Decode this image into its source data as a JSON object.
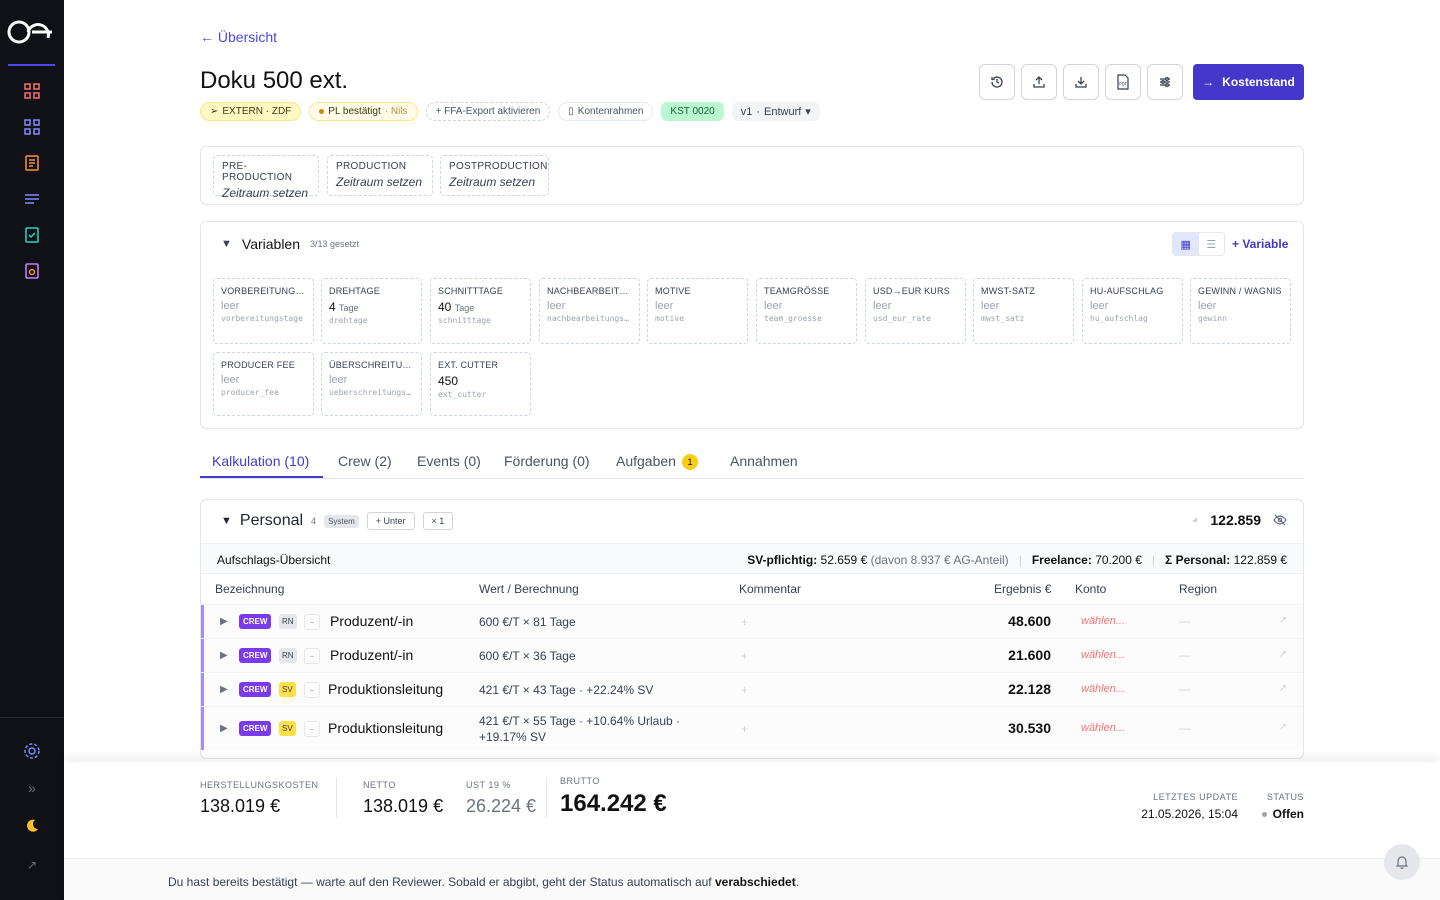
{
  "nav": {
    "back_label": "← Übersicht"
  },
  "project": {
    "title": "Doku 500 ext."
  },
  "badges": {
    "extern": "EXTERN · ZDF",
    "pl_status": "PL bestätigt",
    "pl_user": "· Nils",
    "ffa": "+ FFA-Export aktivieren",
    "kontenrahmen": "Kontenrahmen",
    "kst": "KST 0020",
    "version": "v1",
    "version_sep": "·",
    "version_state": "Entwurf",
    "version_caret": "▾"
  },
  "toolbar": {
    "icons": [
      "history-icon",
      "upload-icon",
      "download-icon",
      "pdf-icon",
      "settings-sliders-icon"
    ],
    "primary_label": "Kostenstand",
    "primary_icon": "→"
  },
  "phases": [
    {
      "title": "PRE-PRODUCTION",
      "value": "Zeitraum setzen"
    },
    {
      "title": "PRODUCTION",
      "value": "Zeitraum setzen"
    },
    {
      "title": "POSTPRODUCTION",
      "value": "Zeitraum setzen"
    }
  ],
  "variables": {
    "title": "Variablen",
    "count": "3/13 gesetzt",
    "add_label": "+ Variable",
    "view_grid": "▦",
    "view_list": "☰",
    "items": [
      {
        "name": "VORBEREITUNGST...",
        "value": "leer",
        "unit": "",
        "key": "vorbereitungstage"
      },
      {
        "name": "DREHTAGE",
        "value": "4",
        "unit": "Tage",
        "key": "drehtage"
      },
      {
        "name": "SCHNITTTAGE",
        "value": "40",
        "unit": "Tage",
        "key": "schnitttage"
      },
      {
        "name": "NACHBEARBEITU...",
        "value": "leer",
        "unit": "",
        "key": "nachbearbeitungs..."
      },
      {
        "name": "MOTIVE",
        "value": "leer",
        "unit": "",
        "key": "motive"
      },
      {
        "name": "TEAMGRÖSSE",
        "value": "leer",
        "unit": "",
        "key": "team_groesse"
      },
      {
        "name": "USD→EUR KURS",
        "value": "leer",
        "unit": "",
        "key": "usd_eur_rate"
      },
      {
        "name": "MWST-SATZ",
        "value": "leer",
        "unit": "",
        "key": "mwst_satz"
      },
      {
        "name": "HU-AUFSCHLAG",
        "value": "leer",
        "unit": "",
        "key": "hu_aufschlag"
      },
      {
        "name": "GEWINN / WAGNIS",
        "value": "leer",
        "unit": "",
        "key": "gewinn"
      },
      {
        "name": "PRODUCER FEE",
        "value": "leer",
        "unit": "",
        "key": "producer_fee"
      },
      {
        "name": "ÜBERSCHREITUN...",
        "value": "leer",
        "unit": "",
        "key": "ueberschreitungs..."
      },
      {
        "name": "EXT. CUTTER",
        "value": "450",
        "unit": "",
        "key": "ext_cutter"
      }
    ]
  },
  "tabs": [
    {
      "label": "Kalkulation (10)"
    },
    {
      "label": "Crew (2)"
    },
    {
      "label": "Events (0)"
    },
    {
      "label": "Förderung (0)"
    },
    {
      "label": "Aufgaben",
      "badge": "1"
    },
    {
      "label": "Annahmen"
    }
  ],
  "personal": {
    "title": "Personal",
    "count": "4",
    "system_tag": "System",
    "add_sub": "+ Unter",
    "mult": "× 1",
    "total": "122.859",
    "aufschlag_title": "Aufschlags-Übersicht",
    "sv_label": "SV-pflichtig:",
    "sv_value": "52.659 €",
    "sv_note": "(davon 8.937 € AG-Anteil)",
    "freelance_label": "Freelance:",
    "freelance_value": "70.200 €",
    "sum_label": "Σ Personal:",
    "sum_value": "122.859 €",
    "columns": [
      "Bezeichnung",
      "Wert / Berechnung",
      "Kommentar",
      "Ergebnis €",
      "Konto",
      "Region"
    ],
    "rows": [
      {
        "tag": "CREW",
        "type": "RN",
        "name": "Produzent/-in",
        "wert": "600 €/T × 81 Tage",
        "comment": "+",
        "result": "48.600",
        "konto": "wählen...",
        "region": "—"
      },
      {
        "tag": "CREW",
        "type": "RN",
        "name": "Produzent/-in",
        "wert": "600 €/T × 36 Tage",
        "comment": "+",
        "result": "21.600",
        "konto": "wählen...",
        "region": "—"
      },
      {
        "tag": "CREW",
        "type": "SV",
        "name": "Produktionsleitung",
        "wert": "421 €/T × 43 Tage · +22.24% SV",
        "comment": "+",
        "result": "22.128",
        "konto": "wählen...",
        "region": "—"
      },
      {
        "tag": "CREW",
        "type": "SV",
        "name": "Produktionsleitung",
        "wert": "421 €/T × 55 Tage · +10.64% Urlaub · +19.17% SV",
        "comment": "+",
        "result": "30.530",
        "konto": "wählen...",
        "region": "—"
      }
    ]
  },
  "totals": {
    "herstellung_label": "HERSTELLUNGSKOSTEN",
    "herstellung_value": "138.019 €",
    "netto_label": "NETTO",
    "netto_value": "138.019 €",
    "ust_label": "UST 19 %",
    "ust_value": "26.224 €",
    "brutto_label": "BRUTTO",
    "brutto_value": "164.242 €",
    "update_label": "LETZTES UPDATE",
    "update_value": "21.05.2026, 15:04",
    "status_label": "STATUS",
    "status_value": "Offen"
  },
  "notice": {
    "text": "Du hast bereits bestätigt — warte auf den Reviewer. Sobald er abgibt, geht der Status automatisch auf ",
    "emphasis": "verabschiedet",
    "end": "."
  },
  "colors": {
    "accent": "#4338ca",
    "crew": "#7c3aed",
    "kst": "#bbf7d0",
    "sv": "#fde047"
  }
}
